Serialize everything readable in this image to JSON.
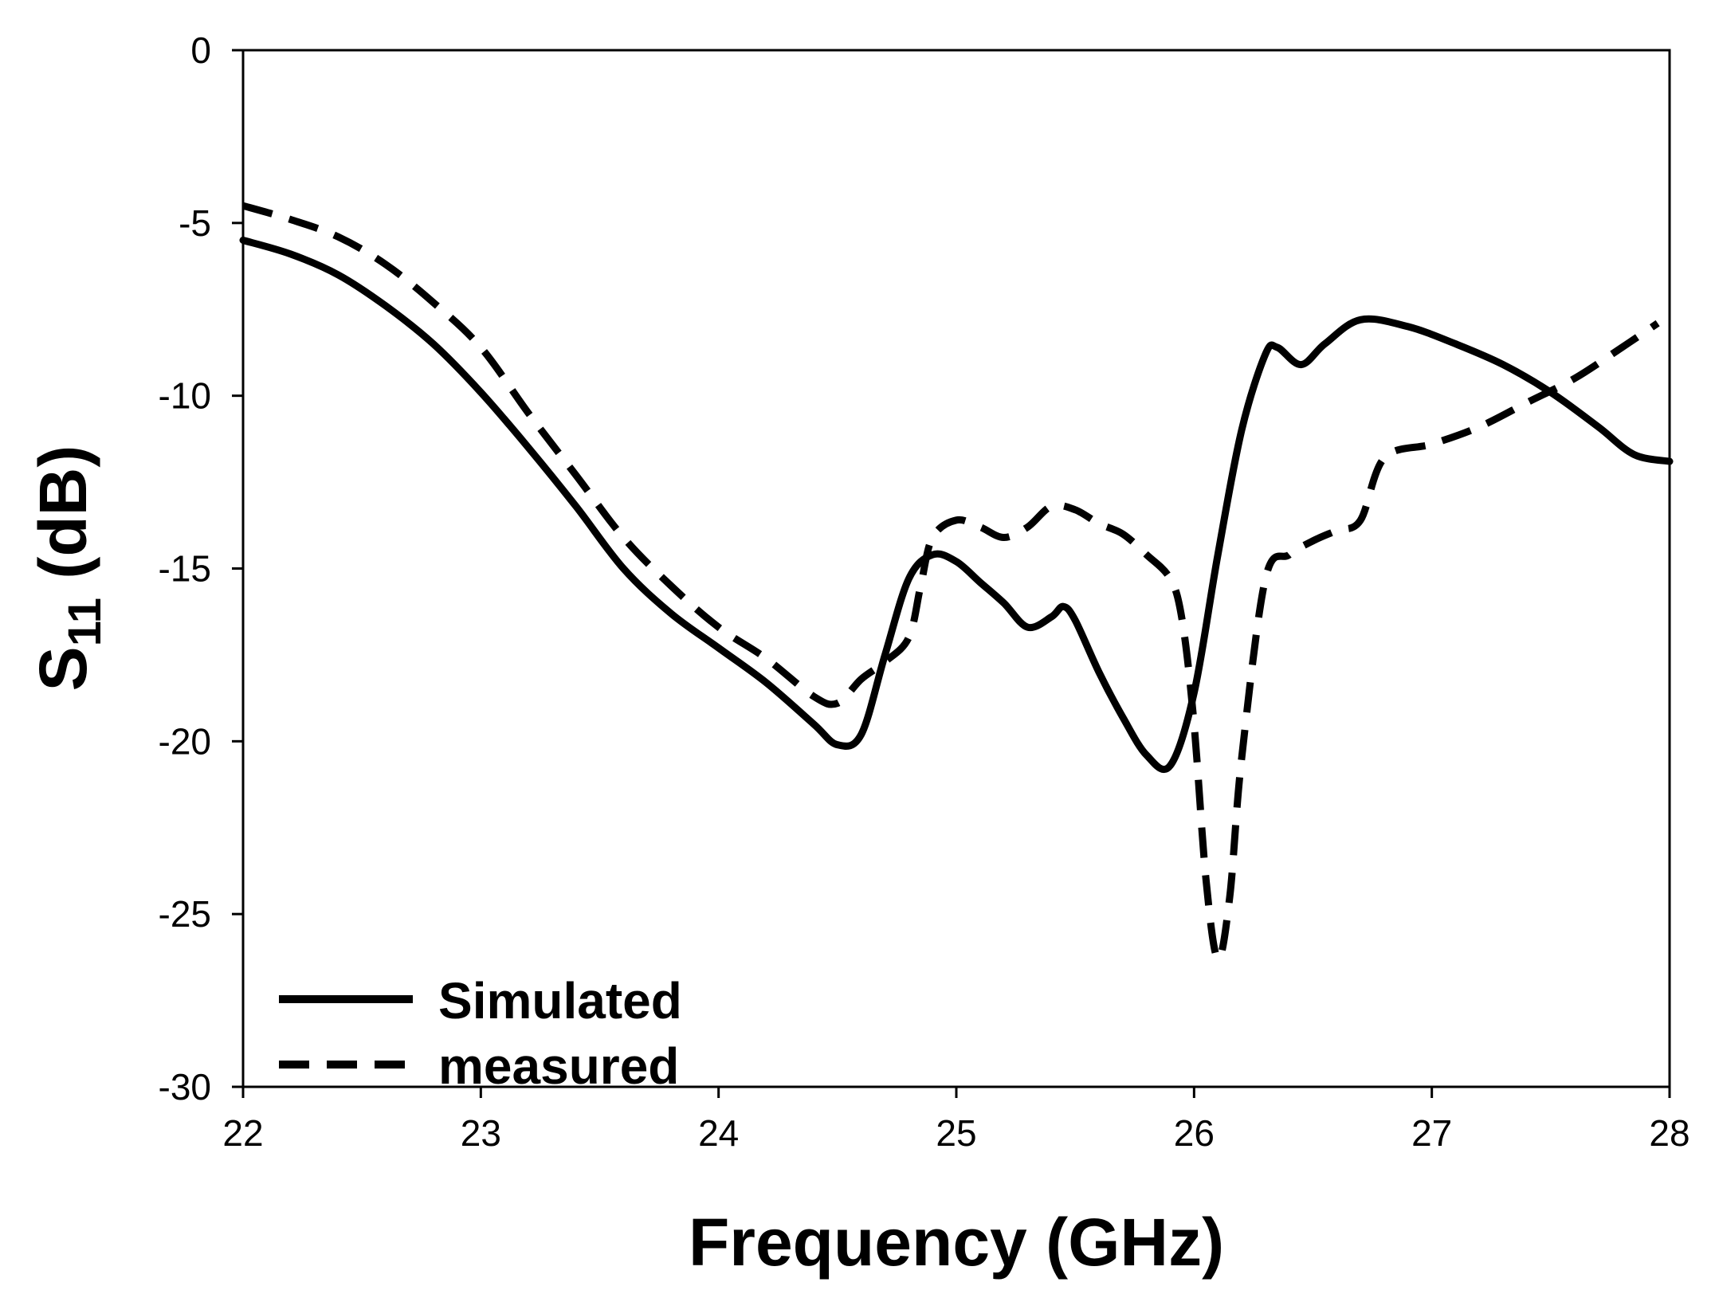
{
  "chart_data": {
    "type": "line",
    "title": "",
    "xlabel": "Frequency (GHz)",
    "ylabel_main": "S",
    "ylabel_sub": "11",
    "ylabel_rest": " (dB)",
    "xlim": [
      22,
      28
    ],
    "ylim": [
      -30,
      0
    ],
    "xticks": [
      22,
      23,
      24,
      25,
      26,
      27,
      28
    ],
    "yticks": [
      0,
      -5,
      -10,
      -15,
      -20,
      -25,
      -30
    ],
    "xtick_labels": [
      "22",
      "23",
      "24",
      "25",
      "26",
      "27",
      "28"
    ],
    "ytick_labels": [
      "0",
      "-5",
      "-10",
      "-15",
      "-20",
      "-25",
      "-30"
    ],
    "grid": false,
    "legend_position": "bottom-left",
    "series": [
      {
        "name": "Simulated",
        "style": "solid",
        "color": "#000000",
        "x": [
          22.0,
          22.2,
          22.4,
          22.6,
          22.8,
          23.0,
          23.2,
          23.4,
          23.6,
          23.8,
          24.0,
          24.2,
          24.4,
          24.5,
          24.6,
          24.7,
          24.8,
          24.9,
          25.0,
          25.1,
          25.2,
          25.3,
          25.4,
          25.45,
          25.5,
          25.6,
          25.7,
          25.8,
          25.9,
          26.0,
          26.1,
          26.2,
          26.3,
          26.35,
          26.45,
          26.55,
          26.7,
          26.9,
          27.1,
          27.3,
          27.5,
          27.7,
          27.85,
          28.0
        ],
        "y": [
          -5.5,
          -5.9,
          -6.5,
          -7.4,
          -8.5,
          -9.9,
          -11.5,
          -13.2,
          -15.0,
          -16.3,
          -17.3,
          -18.3,
          -19.5,
          -20.1,
          -19.8,
          -17.5,
          -15.3,
          -14.6,
          -14.8,
          -15.4,
          -16.0,
          -16.7,
          -16.4,
          -16.1,
          -16.5,
          -18.0,
          -19.3,
          -20.4,
          -20.7,
          -18.6,
          -14.6,
          -11.0,
          -8.8,
          -8.6,
          -9.1,
          -8.5,
          -7.8,
          -8.0,
          -8.5,
          -9.1,
          -9.9,
          -10.9,
          -11.7,
          -11.9
        ]
      },
      {
        "name": "measured",
        "style": "dashed",
        "color": "#000000",
        "x": [
          22.0,
          22.2,
          22.4,
          22.6,
          22.8,
          23.0,
          23.2,
          23.4,
          23.6,
          23.8,
          24.0,
          24.2,
          24.4,
          24.5,
          24.6,
          24.7,
          24.8,
          24.85,
          24.9,
          25.0,
          25.1,
          25.2,
          25.3,
          25.4,
          25.5,
          25.6,
          25.7,
          25.8,
          25.9,
          25.95,
          26.0,
          26.05,
          26.1,
          26.15,
          26.2,
          26.3,
          26.4,
          26.5,
          26.6,
          26.7,
          26.8,
          27.0,
          27.2,
          27.4,
          27.6,
          27.8,
          27.95
        ],
        "y": [
          -4.5,
          -4.9,
          -5.4,
          -6.2,
          -7.3,
          -8.6,
          -10.5,
          -12.3,
          -14.1,
          -15.5,
          -16.7,
          -17.6,
          -18.7,
          -18.9,
          -18.2,
          -17.7,
          -17.0,
          -15.5,
          -14.1,
          -13.6,
          -13.8,
          -14.1,
          -13.8,
          -13.2,
          -13.3,
          -13.7,
          -14.0,
          -14.6,
          -15.3,
          -16.5,
          -19.5,
          -24.0,
          -26.3,
          -24.5,
          -20.5,
          -15.3,
          -14.6,
          -14.2,
          -13.9,
          -13.6,
          -11.8,
          -11.4,
          -10.9,
          -10.2,
          -9.5,
          -8.6,
          -7.9
        ]
      }
    ]
  }
}
